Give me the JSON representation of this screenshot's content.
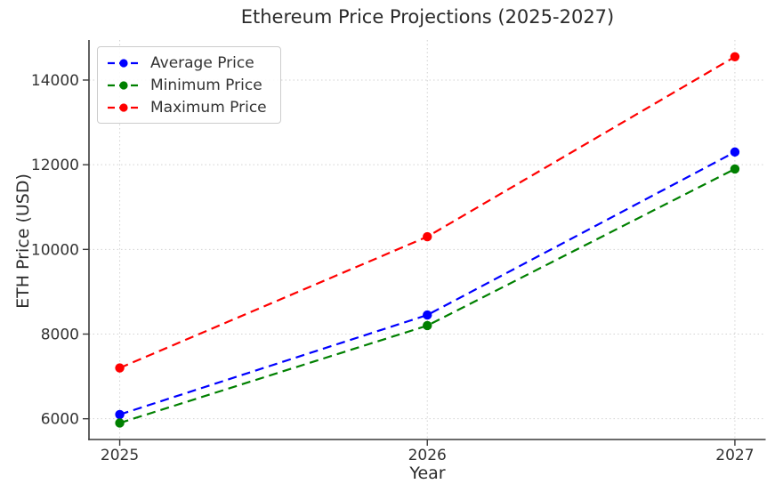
{
  "chart_data": {
    "type": "line",
    "title": "Ethereum Price Projections (2025-2027)",
    "xlabel": "Year",
    "ylabel": "ETH Price (USD)",
    "x": [
      2025,
      2026,
      2027
    ],
    "x_tick_labels": [
      "2025",
      "2026",
      "2027"
    ],
    "y_ticks": [
      6000,
      8000,
      10000,
      12000,
      14000
    ],
    "xlim": [
      2024.9,
      2027.1
    ],
    "ylim": [
      5510,
      14945
    ],
    "grid": true,
    "grid_style": "dotted",
    "line_style": "dashed",
    "marker": "circle",
    "legend_position": "upper left",
    "background_color": "#ffffff",
    "series": [
      {
        "name": "Average Price",
        "color": "#0000ff",
        "values": [
          6100,
          8450,
          12300
        ]
      },
      {
        "name": "Minimum Price",
        "color": "#008000",
        "values": [
          5900,
          8200,
          11900
        ]
      },
      {
        "name": "Maximum Price",
        "color": "#ff0000",
        "values": [
          7200,
          10300,
          14550
        ]
      }
    ]
  }
}
